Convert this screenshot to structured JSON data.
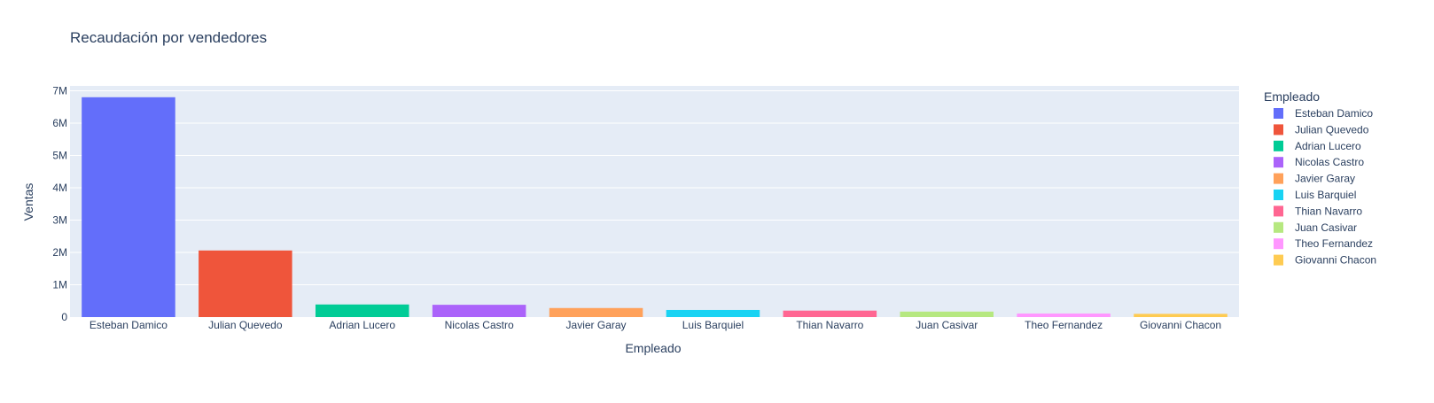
{
  "chart_data": {
    "type": "bar",
    "title": "Recaudación por vendedores",
    "xlabel": "Empleado",
    "ylabel": "Ventas",
    "legend_title": "Empleado",
    "legend_position": "right",
    "grid": true,
    "ylim": [
      0,
      7150000
    ],
    "yticks": [
      {
        "value": 0,
        "label": "0"
      },
      {
        "value": 1000000,
        "label": "1M"
      },
      {
        "value": 2000000,
        "label": "2M"
      },
      {
        "value": 3000000,
        "label": "3M"
      },
      {
        "value": 4000000,
        "label": "4M"
      },
      {
        "value": 5000000,
        "label": "5M"
      },
      {
        "value": 6000000,
        "label": "6M"
      },
      {
        "value": 7000000,
        "label": "7M"
      }
    ],
    "categories": [
      "Esteban Damico",
      "Julian Quevedo",
      "Adrian Lucero",
      "Nicolas Castro",
      "Javier Garay",
      "Luis Barquiel",
      "Thian Navarro",
      "Juan Casivar",
      "Theo Fernandez",
      "Giovanni Chacon"
    ],
    "values": [
      6800000,
      2060000,
      390000,
      380000,
      280000,
      220000,
      200000,
      170000,
      110000,
      100000
    ],
    "colors": [
      "#636efa",
      "#EF553B",
      "#00cc96",
      "#ab63fa",
      "#FFA15A",
      "#19d3f3",
      "#FF6692",
      "#B6E880",
      "#FF97FF",
      "#FECB52"
    ],
    "plot_bg": "#e5ecf6",
    "grid_color": "#ffffff"
  }
}
